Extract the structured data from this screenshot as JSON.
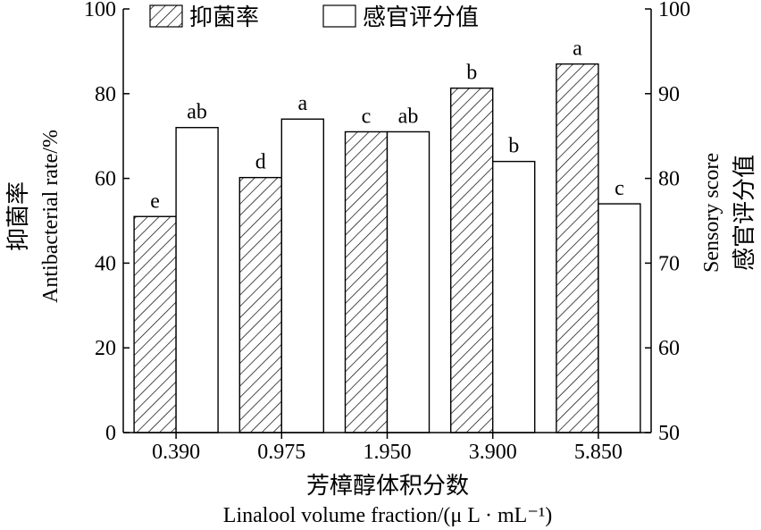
{
  "chart_data": {
    "type": "bar",
    "categories": [
      "0.390",
      "0.975",
      "1.950",
      "3.900",
      "5.850"
    ],
    "series": [
      {
        "name": "抑菌率",
        "axis": "left",
        "pattern": "hatched",
        "values": [
          51,
          60.2,
          71,
          81.3,
          87
        ],
        "labels": [
          "e",
          "d",
          "c",
          "b",
          "a"
        ]
      },
      {
        "name": "感官评分值",
        "axis": "right",
        "pattern": "plain",
        "values": [
          86,
          87,
          85.5,
          82,
          77
        ],
        "labels": [
          "ab",
          "a",
          "ab",
          "b",
          "c"
        ]
      }
    ],
    "left_axis": {
      "label_cn": "抑菌率",
      "label_en": "Antibacterial rate/%",
      "range": [
        0,
        100
      ],
      "ticks": [
        "0",
        "20",
        "40",
        "60",
        "80",
        "100"
      ]
    },
    "right_axis": {
      "label_cn": "感官评分值",
      "label_en": "Sensory score",
      "range": [
        50,
        100
      ],
      "ticks": [
        "50",
        "60",
        "70",
        "80",
        "90",
        "100"
      ]
    },
    "xlabel_cn": "芳樟醇体积分数",
    "xlabel_en": "Linalool volume fraction/(μ L · mL⁻¹)",
    "legend_position": "top-left",
    "grid": false
  }
}
